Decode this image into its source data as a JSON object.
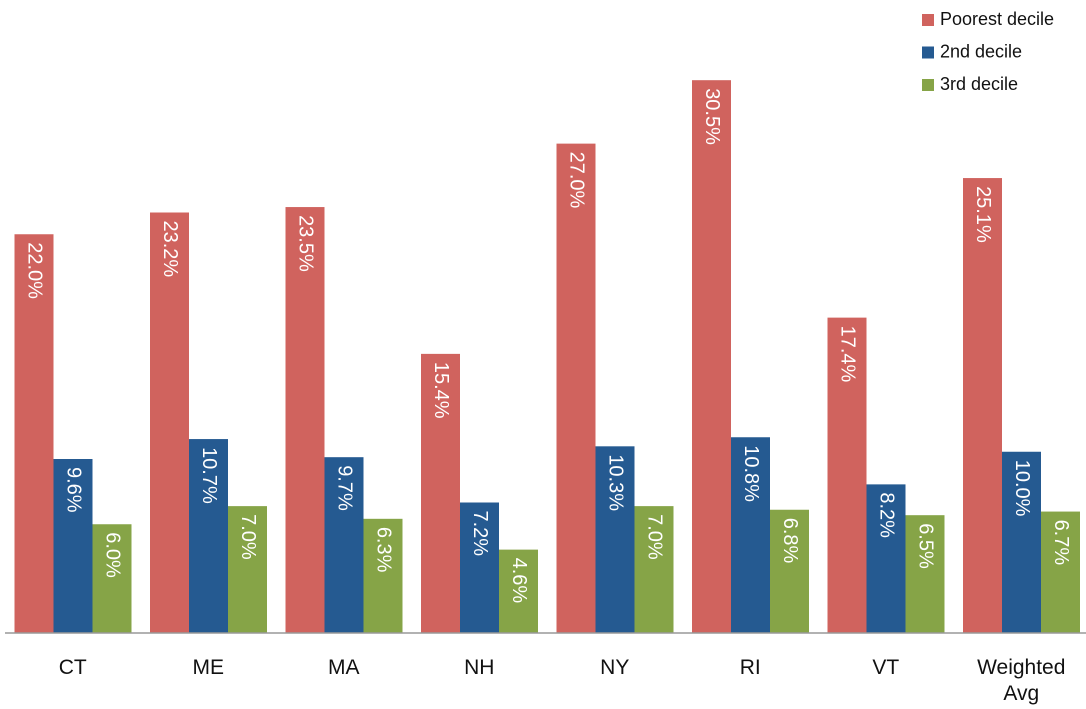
{
  "chart_data": {
    "type": "bar",
    "categories": [
      "CT",
      "ME",
      "MA",
      "NH",
      "NY",
      "RI",
      "VT",
      "Weighted Avg"
    ],
    "series": [
      {
        "name": "Poorest decile",
        "color": "#d0635e",
        "values": [
          22.0,
          23.2,
          23.5,
          15.4,
          27.0,
          30.5,
          17.4,
          25.1
        ],
        "value_labels": [
          "22.0%",
          "23.2%",
          "23.5%",
          "15.4%",
          "27.0%",
          "30.5%",
          "17.4%",
          "25.1%"
        ]
      },
      {
        "name": "2nd decile",
        "color": "#255a91",
        "values": [
          9.6,
          10.7,
          9.7,
          7.2,
          10.3,
          10.8,
          8.2,
          10.0
        ],
        "value_labels": [
          "9.6%",
          "10.7%",
          "9.7%",
          "7.2%",
          "10.3%",
          "10.8%",
          "8.2%",
          "10.0%"
        ]
      },
      {
        "name": "3rd decile",
        "color": "#86a447",
        "values": [
          6.0,
          7.0,
          6.3,
          4.6,
          7.0,
          6.8,
          6.5,
          6.7
        ],
        "value_labels": [
          "6.0%",
          "7.0%",
          "6.3%",
          "4.6%",
          "7.0%",
          "6.8%",
          "6.5%",
          "6.7%"
        ]
      }
    ],
    "ylim": [
      0,
      32
    ],
    "legend": "top-right"
  }
}
